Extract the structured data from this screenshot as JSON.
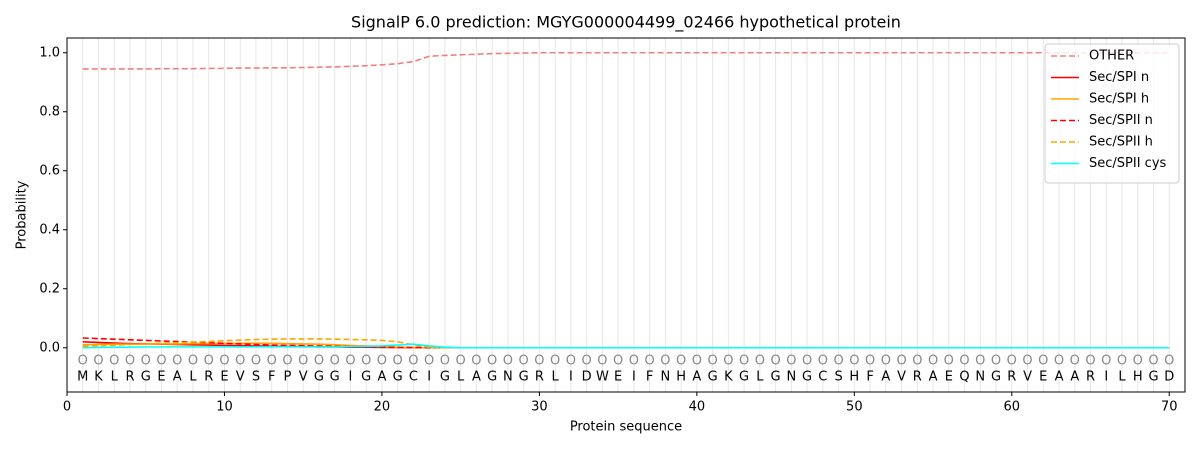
{
  "chart_data": {
    "type": "line",
    "title": "SignalP 6.0 prediction: MGYG000004499_02466 hypothetical protein",
    "x_label": "Protein sequence",
    "y_label": "Probability",
    "xlim": [
      0,
      71
    ],
    "ylim": [
      -0.15,
      1.05
    ],
    "xticks": [
      0,
      10,
      20,
      30,
      40,
      50,
      60,
      70
    ],
    "yticks": [
      {
        "value": 0,
        "label": "0.0"
      },
      0.2,
      0.4,
      0.6,
      0.8,
      {
        "value": 1,
        "label": "1.0"
      }
    ],
    "grid": true,
    "legend": "upper right",
    "x": [
      1,
      2,
      3,
      4,
      5,
      6,
      7,
      8,
      9,
      10,
      11,
      12,
      13,
      14,
      15,
      16,
      17,
      18,
      19,
      20,
      21,
      22,
      23,
      24,
      25,
      26,
      27,
      28,
      29,
      30,
      31,
      32,
      33,
      34,
      35,
      36,
      37,
      38,
      39,
      40,
      41,
      42,
      43,
      44,
      45,
      46,
      47,
      48,
      49,
      50,
      51,
      52,
      53,
      54,
      55,
      56,
      57,
      58,
      59,
      60,
      61,
      62,
      63,
      64,
      65,
      66,
      67,
      68,
      69,
      70
    ],
    "sequence": [
      "M",
      "K",
      "L",
      "R",
      "G",
      "E",
      "A",
      "L",
      "R",
      "E",
      "V",
      "S",
      "F",
      "P",
      "V",
      "G",
      "G",
      "I",
      "G",
      "A",
      "G",
      "C",
      "I",
      "G",
      "L",
      "A",
      "G",
      "N",
      "G",
      "R",
      "L",
      "I",
      "D",
      "W",
      "E",
      "I",
      "F",
      "N",
      "H",
      "A",
      "G",
      "K",
      "G",
      "L",
      "G",
      "N",
      "G",
      "C",
      "S",
      "H",
      "F",
      "A",
      "V",
      "R",
      "A",
      "E",
      "Q",
      "N",
      "G",
      "R",
      "V",
      "E",
      "A",
      "A",
      "R",
      "I",
      "L",
      "H",
      "G",
      "D"
    ],
    "labels": [
      "O",
      "O",
      "O",
      "O",
      "O",
      "O",
      "O",
      "O",
      "O",
      "O",
      "O",
      "O",
      "O",
      "O",
      "O",
      "O",
      "O",
      "O",
      "O",
      "O",
      "O",
      "O",
      "O",
      "O",
      "O",
      "O",
      "O",
      "O",
      "O",
      "O",
      "O",
      "O",
      "O",
      "O",
      "O",
      "O",
      "O",
      "O",
      "O",
      "O",
      "O",
      "O",
      "O",
      "O",
      "O",
      "O",
      "O",
      "O",
      "O",
      "O",
      "O",
      "O",
      "O",
      "O",
      "O",
      "O",
      "O",
      "O",
      "O",
      "O",
      "O",
      "O",
      "O",
      "O",
      "O",
      "O",
      "O",
      "O",
      "O",
      "O"
    ],
    "series": [
      {
        "name": "OTHER",
        "color": "#f08080",
        "linestyle": "dashed",
        "values": [
          0.945,
          0.945,
          0.945,
          0.945,
          0.945,
          0.946,
          0.946,
          0.946,
          0.947,
          0.947,
          0.948,
          0.948,
          0.949,
          0.949,
          0.95,
          0.951,
          0.952,
          0.954,
          0.956,
          0.959,
          0.963,
          0.97,
          0.988,
          0.991,
          0.993,
          0.995,
          0.997,
          0.998,
          0.999,
          1,
          1,
          1,
          1,
          1,
          1,
          1,
          1,
          1,
          1,
          1,
          1,
          1,
          1,
          1,
          1,
          1,
          1,
          1,
          1,
          1,
          1,
          1,
          1,
          1,
          1,
          1,
          1,
          1,
          1,
          1,
          1,
          1,
          1,
          1,
          1,
          1,
          1,
          1,
          1,
          1
        ]
      },
      {
        "name": "Sec/SPI n",
        "color": "#ff0000",
        "linestyle": "solid",
        "values": [
          0.02,
          0.018,
          0.016,
          0.014,
          0.013,
          0.012,
          0.011,
          0.01,
          0.009,
          0.008,
          0.007,
          0.006,
          0.005,
          0.004,
          0.004,
          0.003,
          0.003,
          0.002,
          0.002,
          0.001,
          0.001,
          0,
          0,
          0,
          0,
          0,
          0,
          0,
          0,
          0,
          0,
          0,
          0,
          0,
          0,
          0,
          0,
          0,
          0,
          0,
          0,
          0,
          0,
          0,
          0,
          0,
          0,
          0,
          0,
          0,
          0,
          0,
          0,
          0,
          0,
          0,
          0,
          0,
          0,
          0,
          0,
          0,
          0,
          0,
          0,
          0,
          0,
          0,
          0,
          0
        ]
      },
      {
        "name": "Sec/SPI h",
        "color": "#ffa500",
        "linestyle": "solid",
        "values": [
          0.01,
          0.011,
          0.012,
          0.012,
          0.012,
          0.013,
          0.013,
          0.014,
          0.014,
          0.015,
          0.015,
          0.015,
          0.015,
          0.014,
          0.013,
          0.012,
          0.01,
          0.008,
          0.006,
          0.004,
          0.002,
          0.001,
          0,
          0,
          0,
          0,
          0,
          0,
          0,
          0,
          0,
          0,
          0,
          0,
          0,
          0,
          0,
          0,
          0,
          0,
          0,
          0,
          0,
          0,
          0,
          0,
          0,
          0,
          0,
          0,
          0,
          0,
          0,
          0,
          0,
          0,
          0,
          0,
          0,
          0,
          0,
          0,
          0,
          0,
          0,
          0,
          0,
          0,
          0,
          0
        ]
      },
      {
        "name": "Sec/SPII n",
        "color": "#ff0000",
        "linestyle": "dashed",
        "values": [
          0.033,
          0.031,
          0.029,
          0.027,
          0.025,
          0.023,
          0.021,
          0.019,
          0.017,
          0.015,
          0.013,
          0.011,
          0.009,
          0.008,
          0.007,
          0.006,
          0.005,
          0.004,
          0.003,
          0.002,
          0.001,
          0.001,
          0,
          0,
          0,
          0,
          0,
          0,
          0,
          0,
          0,
          0,
          0,
          0,
          0,
          0,
          0,
          0,
          0,
          0,
          0,
          0,
          0,
          0,
          0,
          0,
          0,
          0,
          0,
          0,
          0,
          0,
          0,
          0,
          0,
          0,
          0,
          0,
          0,
          0,
          0,
          0,
          0,
          0,
          0,
          0,
          0,
          0,
          0,
          0
        ]
      },
      {
        "name": "Sec/SPII h",
        "color": "#ffa500",
        "linestyle": "dashed",
        "values": [
          0.005,
          0.007,
          0.009,
          0.011,
          0.013,
          0.015,
          0.017,
          0.019,
          0.021,
          0.024,
          0.026,
          0.028,
          0.029,
          0.03,
          0.03,
          0.03,
          0.029,
          0.028,
          0.027,
          0.025,
          0.02,
          0.01,
          0.002,
          0,
          0,
          0,
          0,
          0,
          0,
          0,
          0,
          0,
          0,
          0,
          0,
          0,
          0,
          0,
          0,
          0,
          0,
          0,
          0,
          0,
          0,
          0,
          0,
          0,
          0,
          0,
          0,
          0,
          0,
          0,
          0,
          0,
          0,
          0,
          0,
          0,
          0,
          0,
          0,
          0,
          0,
          0,
          0,
          0,
          0,
          0
        ]
      },
      {
        "name": "Sec/SPII cys",
        "color": "#00ffff",
        "linestyle": "solid",
        "values": [
          0,
          0.001,
          0.002,
          0.002,
          0.003,
          0.003,
          0.003,
          0.003,
          0.003,
          0.003,
          0.003,
          0.003,
          0.003,
          0.003,
          0.003,
          0.003,
          0.003,
          0.004,
          0.005,
          0.006,
          0.009,
          0.012,
          0.006,
          0.002,
          0,
          0,
          0,
          0,
          0,
          0,
          0,
          0,
          0,
          0,
          0,
          0,
          0,
          0,
          0,
          0,
          0,
          0,
          0,
          0,
          0,
          0,
          0,
          0,
          0,
          0,
          0,
          0,
          0,
          0,
          0,
          0,
          0,
          0,
          0,
          0,
          0,
          0,
          0,
          0,
          0,
          0,
          0,
          0,
          0,
          0
        ]
      }
    ]
  }
}
